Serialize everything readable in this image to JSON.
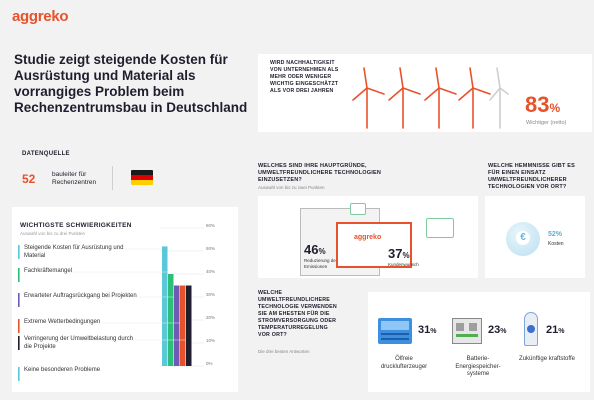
{
  "brand": {
    "logo": "aggreko"
  },
  "title": "Studie zeigt steigende Kosten für Ausrüstung und Material als vorrangiges Problem beim Rechenzentrumsbau in Deutschland",
  "datasource": {
    "label": "DATENQUELLE",
    "count": "52",
    "text": "bauleiter für Rechenzentren",
    "flag": "germany-flag"
  },
  "difficulties": {
    "title": "WICHTIGSTE SCHWIERIGKEITEN",
    "subtitle": "Auswahl von bis zu drei Punkten",
    "items": [
      {
        "label": "Steigende Kosten für Ausrüstung und Material",
        "value": 52,
        "color": "#5ac8d8"
      },
      {
        "label": "Fachkräftemangel",
        "value": 40,
        "color": "#2dbf7a"
      },
      {
        "label": "Erwarteter Auftragsrückgang bei Projekten",
        "value": 35,
        "color": "#6f5bb5"
      },
      {
        "label": "Extreme Wetterbedingungen",
        "value": 35,
        "color": "#e8522b"
      },
      {
        "label": "Verringerung der Umweltbelastung durch die Projekte",
        "value": 35,
        "color": "#1e1e2e"
      },
      {
        "label": "Keine besonderen Probleme",
        "value": 0,
        "color": "#5ac8d8"
      }
    ],
    "ticks": [
      "60%",
      "50%",
      "40%",
      "30%",
      "20%",
      "10%",
      "0%"
    ]
  },
  "sustainability": {
    "question": "WIRD NACHHALTIGKEIT VON UNTERNEHMEN ALS MEHR ODER WENIGER WICHTIG EINGESCHÄTZT ALS VOR DREI JAHREN",
    "value": "83",
    "value_unit": "%",
    "label": "Wichtiger (netto)"
  },
  "reasons": {
    "question": "WELCHES SIND IHRE HAUPTGRÜNDE, UMWELTFREUNDLICHERE TECHNOLOGIEN EINZUSETZEN?",
    "subtitle": "Auswahl von bis zu zwei Punkten",
    "items": [
      {
        "value": "46",
        "unit": "%",
        "label": "Reduzierung der Kohlendioxid-Emissionen"
      },
      {
        "value": "37",
        "unit": "%",
        "label": "Kundenwunsch"
      }
    ],
    "card_logo": "aggreko"
  },
  "obstacles": {
    "question": "WELCHE HEMMNISSE GIBT ES FÜR EINEN EINSATZ UMWELTFREUNDLICHERER TECHNOLOGIEN VOR ORT?",
    "value": "52",
    "unit": "%",
    "label": "Kosten",
    "icon": "euro-icon"
  },
  "technology": {
    "question": "WELCHE UMWELTFREUNDLICHERE TECHNOLOGIE VERWENDEN SIE AM EHESTEN FÜR DIE STROMVERSORGUNG ODER TEMPERATURREGELUNG VOR ORT?",
    "subtitle": "Die drei besten Antworten",
    "items": [
      {
        "value": "31",
        "unit": "%",
        "label": "Ölfreie drucklufterzeuger",
        "icon": "compressor-icon"
      },
      {
        "value": "23",
        "unit": "%",
        "label": "Batterie-Energiespeicher-systeme",
        "icon": "battery-storage-icon"
      },
      {
        "value": "21",
        "unit": "%",
        "label": "Zukünftige kraftstoffe",
        "icon": "hydrogen-tank-icon"
      }
    ]
  },
  "colors": {
    "accent": "#e8522b",
    "dark": "#1e1e2e"
  }
}
